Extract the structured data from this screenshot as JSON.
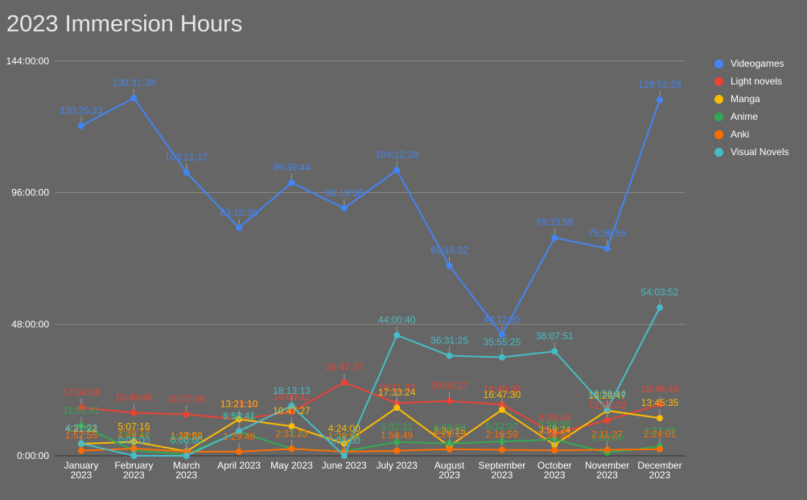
{
  "chart_data": {
    "type": "line",
    "title": "2023 Immersion Hours",
    "xlabel": "",
    "ylabel": "",
    "ylim": [
      0,
      144
    ],
    "y_ticks": [
      {
        "value": 0,
        "label": "0:00:00"
      },
      {
        "value": 48,
        "label": "48:00:00"
      },
      {
        "value": 96,
        "label": "96:00:00"
      },
      {
        "value": 144,
        "label": "144:00:00"
      }
    ],
    "categories": [
      [
        "January",
        "2023"
      ],
      [
        "February",
        "2023"
      ],
      [
        "March",
        "2023"
      ],
      [
        "April 2023"
      ],
      [
        "May 2023"
      ],
      [
        "June 2023"
      ],
      [
        "July 2023"
      ],
      [
        "August",
        "2023"
      ],
      [
        "September",
        "2023"
      ],
      [
        "October",
        "2023"
      ],
      [
        "November",
        "2023"
      ],
      [
        "December",
        "2023"
      ]
    ],
    "legend_position": "right",
    "series": [
      {
        "name": "Videogames",
        "color": "#4285f4",
        "values": [
          120.42,
          130.53,
          103.35,
          83.18,
          99.66,
          90.33,
          104.21,
          69.31,
          44.21,
          79.57,
          75.61,
          129.87
        ],
        "labels": [
          "120:25:23",
          "130:31:38",
          "103:21:17",
          "83:10:36",
          "99:39:44",
          "90:19:38",
          "104:12:28",
          "69:18:32",
          "44:12:35",
          "79:33:56",
          "75:36:56",
          "129:52:28"
        ]
      },
      {
        "name": "Light novels",
        "color": "#ea4335",
        "values": [
          17.58,
          15.68,
          15.12,
          13.3,
          16.0,
          26.79,
          19.2,
          20.02,
          18.7,
          8.14,
          12.9,
          18.78
        ],
        "labels": [
          "17:34:36",
          "15:40:46",
          "15:07:06",
          "13:18:02",
          "16:00:12",
          "26:47:27",
          "19:11:32",
          "20:01:27",
          "18:40:30",
          "8:08:46",
          "12:53:32",
          "18:46:49"
        ]
      },
      {
        "name": "Manga",
        "color": "#fbbc04",
        "values": [
          4.35,
          5.12,
          1.63,
          13.35,
          10.79,
          4.4,
          17.56,
          3.5,
          16.79,
          3.99,
          16.49,
          13.76
        ],
        "labels": [
          "4:21:22",
          "5:07:16",
          "1:37:52",
          "13:21:10",
          "10:47:27",
          "4:24:00",
          "17:33:24",
          "3:30:15",
          "16:47:30",
          "3:59:24",
          "16:29:47",
          "13:45:35"
        ]
      },
      {
        "name": "Anime",
        "color": "#34a853",
        "values": [
          11.02,
          1.93,
          0.6,
          8.81,
          2.55,
          1.6,
          5.04,
          4.48,
          5.2,
          5.98,
          1.15,
          3.45
        ],
        "labels": [
          "11:01:41",
          "1:55:40",
          "0:36:00",
          "8:48:48",
          "2:33:10",
          "1:36:00",
          "5:02:12",
          "4:28:38",
          "5:12:07",
          "5:58:50",
          "1:09:00",
          "3:27:09"
        ]
      },
      {
        "name": "Anki",
        "color": "#ff6d01",
        "values": [
          1.88,
          2.65,
          1.5,
          1.5,
          2.53,
          1.5,
          1.85,
          2.4,
          2.18,
          1.98,
          2.19,
          2.4
        ],
        "labels": [
          "1:52:55",
          "2:39:17",
          "1:30:00",
          "1:29:48",
          "2:31:23",
          "1:29:57",
          "1:50:49",
          "2:24:15",
          "2:10:59",
          "1:58:50",
          "2:11:27",
          "2:24:01"
        ]
      },
      {
        "name": "Visual Novels",
        "color": "#46bdc6",
        "values": [
          4.51,
          0.0,
          0.0,
          8.98,
          18.22,
          0.0,
          44.01,
          36.53,
          35.93,
          38.13,
          16.97,
          54.07
        ],
        "labels": [
          "4:31:23",
          "0:00:00",
          "0:00:00",
          "8:58:41",
          "18:13:13",
          "0:00:00",
          "44:00:40",
          "36:31:25",
          "35:55:25",
          "38:07:51",
          "16:58:14",
          "54:03:52"
        ]
      }
    ]
  }
}
